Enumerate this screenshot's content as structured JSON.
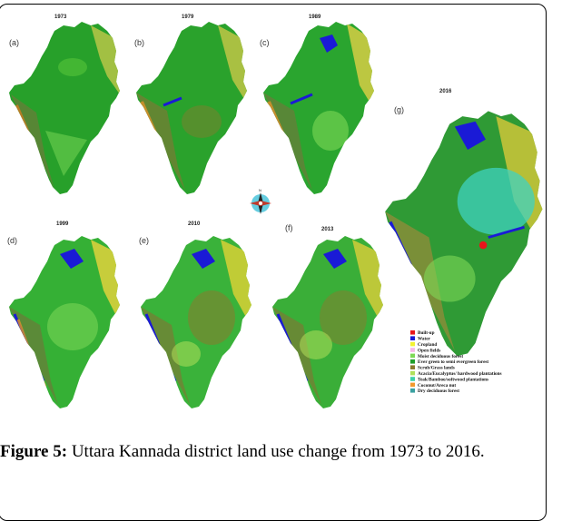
{
  "panels": [
    {
      "letter": "(a)",
      "year": "1973"
    },
    {
      "letter": "(b)",
      "year": "1979"
    },
    {
      "letter": "(c)",
      "year": "1989"
    },
    {
      "letter": "(d)",
      "year": "1999"
    },
    {
      "letter": "(e)",
      "year": "2010"
    },
    {
      "letter": "(f)",
      "year": "2013"
    },
    {
      "letter": "(g)",
      "year": "2016"
    }
  ],
  "compass": {
    "north": "N"
  },
  "legend": [
    {
      "label": "Built-up",
      "color": "#e8151b"
    },
    {
      "label": "Water",
      "color": "#1a1ad6"
    },
    {
      "label": "Cropland",
      "color": "#f2f230"
    },
    {
      "label": "Open fields",
      "color": "#f5b8e8"
    },
    {
      "label": "Moist deciduous forest",
      "color": "#7ed957"
    },
    {
      "label": "Ever green to semi evergreen forest",
      "color": "#1f9e2a"
    },
    {
      "label": "Scrub/Grass lands",
      "color": "#8a7a2e"
    },
    {
      "label": "Acacia/Eucalyptus/ hardwood plantations",
      "color": "#b0e05a"
    },
    {
      "label": "Teak/Bamboo/softwood plantations",
      "color": "#3fd1a8"
    },
    {
      "label": "Coconut/Areca nut",
      "color": "#f29a2e"
    },
    {
      "label": "Dry deciduous forest",
      "color": "#3aa0a0"
    }
  ],
  "caption": {
    "label": "Figure 5:",
    "text": " Uttara Kannada district land use change from 1973 to 2016."
  }
}
